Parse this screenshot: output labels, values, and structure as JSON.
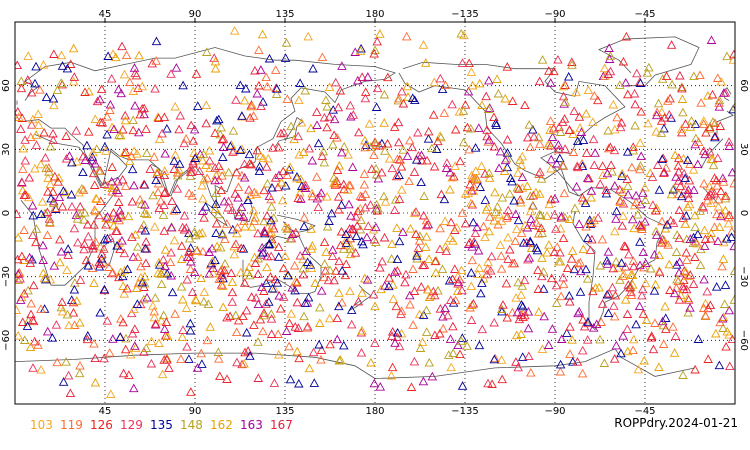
{
  "title": "ROPPdry.2024-01-21",
  "axes": {
    "top_lon_ticks": [
      "45",
      "90",
      "135",
      "180",
      "−135",
      "−90",
      "−45"
    ],
    "bottom_lon_ticks": [
      "45",
      "90",
      "135",
      "180",
      "−135",
      "−90",
      "−45"
    ],
    "left_lat_ticks": [
      "60",
      "30",
      "0",
      "−30",
      "−60"
    ],
    "right_lat_ticks": [
      "60",
      "30",
      "0",
      "−30",
      "−60"
    ]
  },
  "legend": [
    {
      "label": "103",
      "color": "#f5a623"
    },
    {
      "label": "119",
      "color": "#ff6a33"
    },
    {
      "label": "126",
      "color": "#ee2222"
    },
    {
      "label": "129",
      "color": "#e8335a"
    },
    {
      "label": "135",
      "color": "#000099"
    },
    {
      "label": "148",
      "color": "#b8a020"
    },
    {
      "label": "162",
      "color": "#e8a000"
    },
    {
      "label": "163",
      "color": "#aa0099"
    },
    {
      "label": "167",
      "color": "#e81e3c"
    }
  ],
  "chart_data": {
    "type": "scatter",
    "projection": "equirectangular, central longitude 180",
    "xlim": [
      0,
      360
    ],
    "ylim": [
      -90,
      90
    ],
    "grid": true,
    "marker": "open triangle",
    "x_ticks": [
      45,
      90,
      135,
      180,
      225,
      270,
      315
    ],
    "y_ticks": [
      60,
      30,
      0,
      -30,
      -60
    ],
    "series_labels": [
      "103",
      "119",
      "126",
      "129",
      "135",
      "148",
      "162",
      "163",
      "167"
    ],
    "approx_point_count": 2000,
    "random_seed": 20240121
  }
}
